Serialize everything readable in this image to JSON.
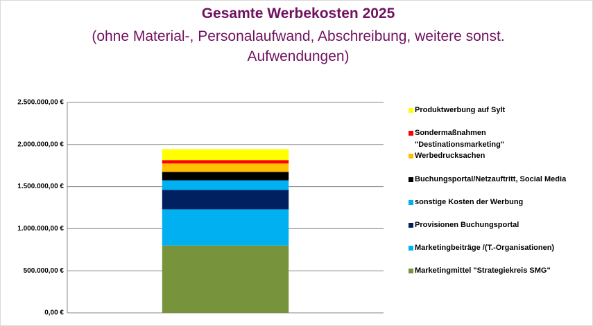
{
  "chart_data": {
    "type": "stacked-bar",
    "title": "Gesamte Werbekosten 2025",
    "subtitle": "(ohne Material-, Personalaufwand, Abschreibung, weitere sonst. Aufwendungen)",
    "categories": [
      null
    ],
    "series": [
      {
        "name": "Marketingmittel \"Strategiekreis SMG\"",
        "color": "#77933c",
        "values": [
          800000
        ]
      },
      {
        "name": "Marketingbeiträge /(T.-Organisationen)",
        "color": "#00b0f0",
        "values": [
          430000
        ]
      },
      {
        "name": "Provisionen Buchungsportal",
        "color": "#002060",
        "values": [
          230000
        ]
      },
      {
        "name": "sonstige Kosten der Werbung",
        "color": "#00b0f0",
        "values": [
          115000
        ]
      },
      {
        "name": "Buchungsportal/Netzauftritt, Social Media",
        "color": "#000000",
        "values": [
          100000
        ]
      },
      {
        "name": "Werbedrucksachen",
        "color": "#ffc000",
        "values": [
          100000
        ]
      },
      {
        "name": "Sondermaßnahmen \"Destinationsmarketing\"",
        "color": "#ff0000",
        "values": [
          40000
        ]
      },
      {
        "name": "Produktwerbung auf Sylt",
        "color": "#ffff00",
        "values": [
          130000
        ]
      }
    ],
    "ylim": [
      0,
      2500000
    ],
    "yticks": [
      {
        "value": 0,
        "label": "0,00 €"
      },
      {
        "value": 500000,
        "label": "500.000,00 €"
      },
      {
        "value": 1000000,
        "label": "1.000.000,00 €"
      },
      {
        "value": 1500000,
        "label": "1.500.000,00 €"
      },
      {
        "value": 2000000,
        "label": "2.000.000,00 €"
      },
      {
        "value": 2500000,
        "label": "2.500.000,00 €"
      }
    ],
    "grid": true,
    "legend": "right"
  }
}
